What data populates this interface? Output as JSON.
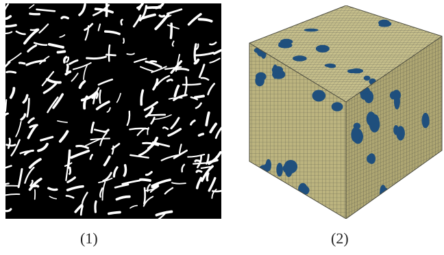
{
  "figure": {
    "panels": [
      {
        "id": "panel-1",
        "label": "(1)",
        "kind": "binary-micrograph",
        "background": "#000000",
        "phase_color": "#ffffff"
      },
      {
        "id": "panel-2",
        "label": "(2)",
        "kind": "meshed-cube-model",
        "matrix_color": "#b7af7a",
        "inclusion_color": "#1f4f7d",
        "grid_color": "#6a6a52"
      }
    ]
  }
}
